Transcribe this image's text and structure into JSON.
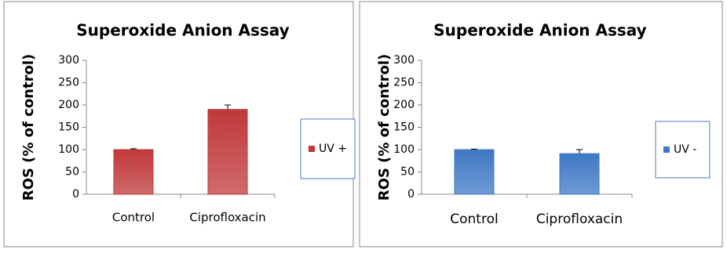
{
  "chart_data": [
    {
      "type": "bar",
      "title": "Superoxide Anion Assay",
      "y_label": "ROS (% of control)",
      "categories": [
        "Control",
        "Ciprofloxacin"
      ],
      "series": [
        {
          "name": "UV +",
          "color": "#c0393a",
          "values": [
            100,
            190
          ],
          "errors": [
            2,
            10
          ]
        }
      ],
      "ylim": [
        0,
        300
      ],
      "yticks": [
        0,
        50,
        100,
        150,
        200,
        250,
        300
      ]
    },
    {
      "type": "bar",
      "title": "Superoxide Anion Assay",
      "y_label": "ROS (% of control)",
      "categories": [
        "Control",
        "Ciprofloxacin"
      ],
      "series": [
        {
          "name": "UV -",
          "color": "#3f78c4",
          "values": [
            100,
            91
          ],
          "errors": [
            1,
            9
          ]
        }
      ],
      "ylim": [
        0,
        300
      ],
      "yticks": [
        0,
        50,
        100,
        150,
        200,
        250,
        300
      ]
    }
  ]
}
